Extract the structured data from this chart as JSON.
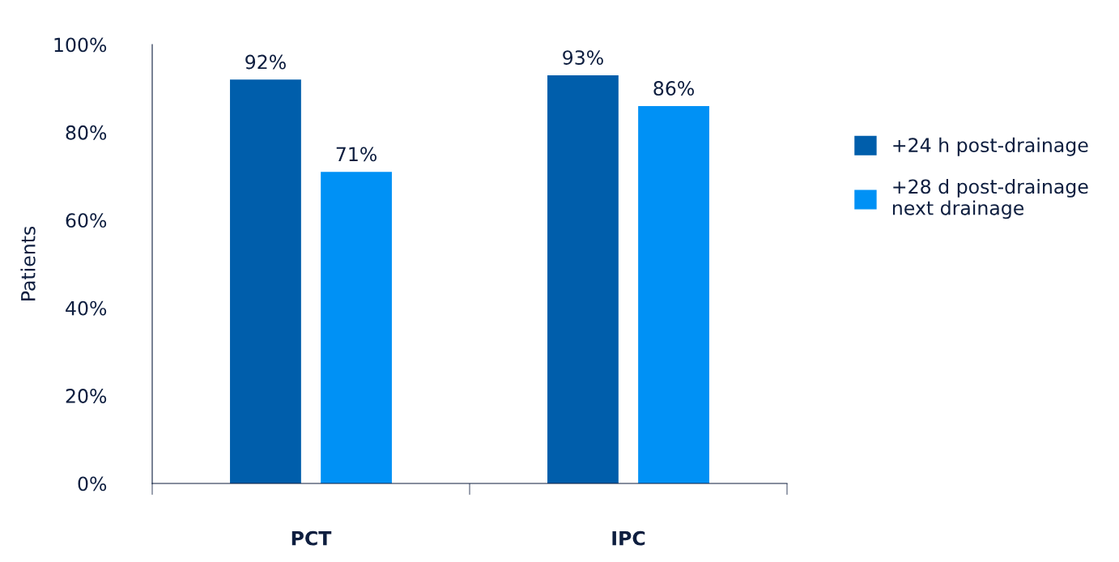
{
  "chart_data": {
    "type": "bar",
    "ylabel": "Patients",
    "categories": [
      "PCT",
      "IPC"
    ],
    "series": [
      {
        "name": "+24 h post-drainage",
        "color": "#005eab",
        "values": [
          92,
          93
        ],
        "value_labels": [
          "92%",
          "93%"
        ]
      },
      {
        "name": "+28 d post-drainage\nnext drainage",
        "color": "#0091f5",
        "values": [
          71,
          86
        ],
        "value_labels": [
          "71%",
          "86%"
        ]
      }
    ],
    "ylim": [
      0,
      100
    ],
    "yticks": [
      {
        "value": 0,
        "label": "0%"
      },
      {
        "value": 20,
        "label": "20%"
      },
      {
        "value": 40,
        "label": "40%"
      },
      {
        "value": 60,
        "label": "60%"
      },
      {
        "value": 80,
        "label": "80%"
      },
      {
        "value": 100,
        "label": "100%"
      }
    ],
    "grid": false,
    "legend": "right"
  }
}
